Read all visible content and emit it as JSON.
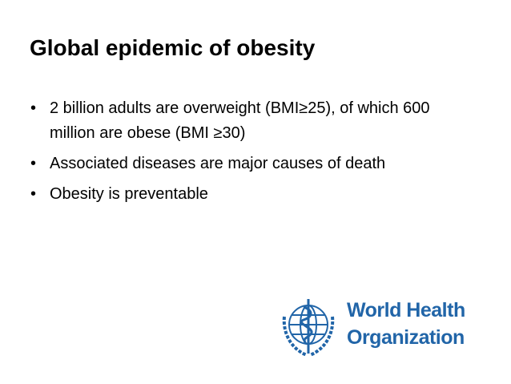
{
  "slide": {
    "title": "Global epidemic of obesity",
    "bullets": [
      "2 billion adults are overweight (BMI≥25), of which 600 million are obese (BMI ≥30)",
      "Associated diseases are major causes of death",
      "Obesity is preventable"
    ],
    "logo": {
      "line1": "World Health",
      "line2": "Organization"
    }
  }
}
